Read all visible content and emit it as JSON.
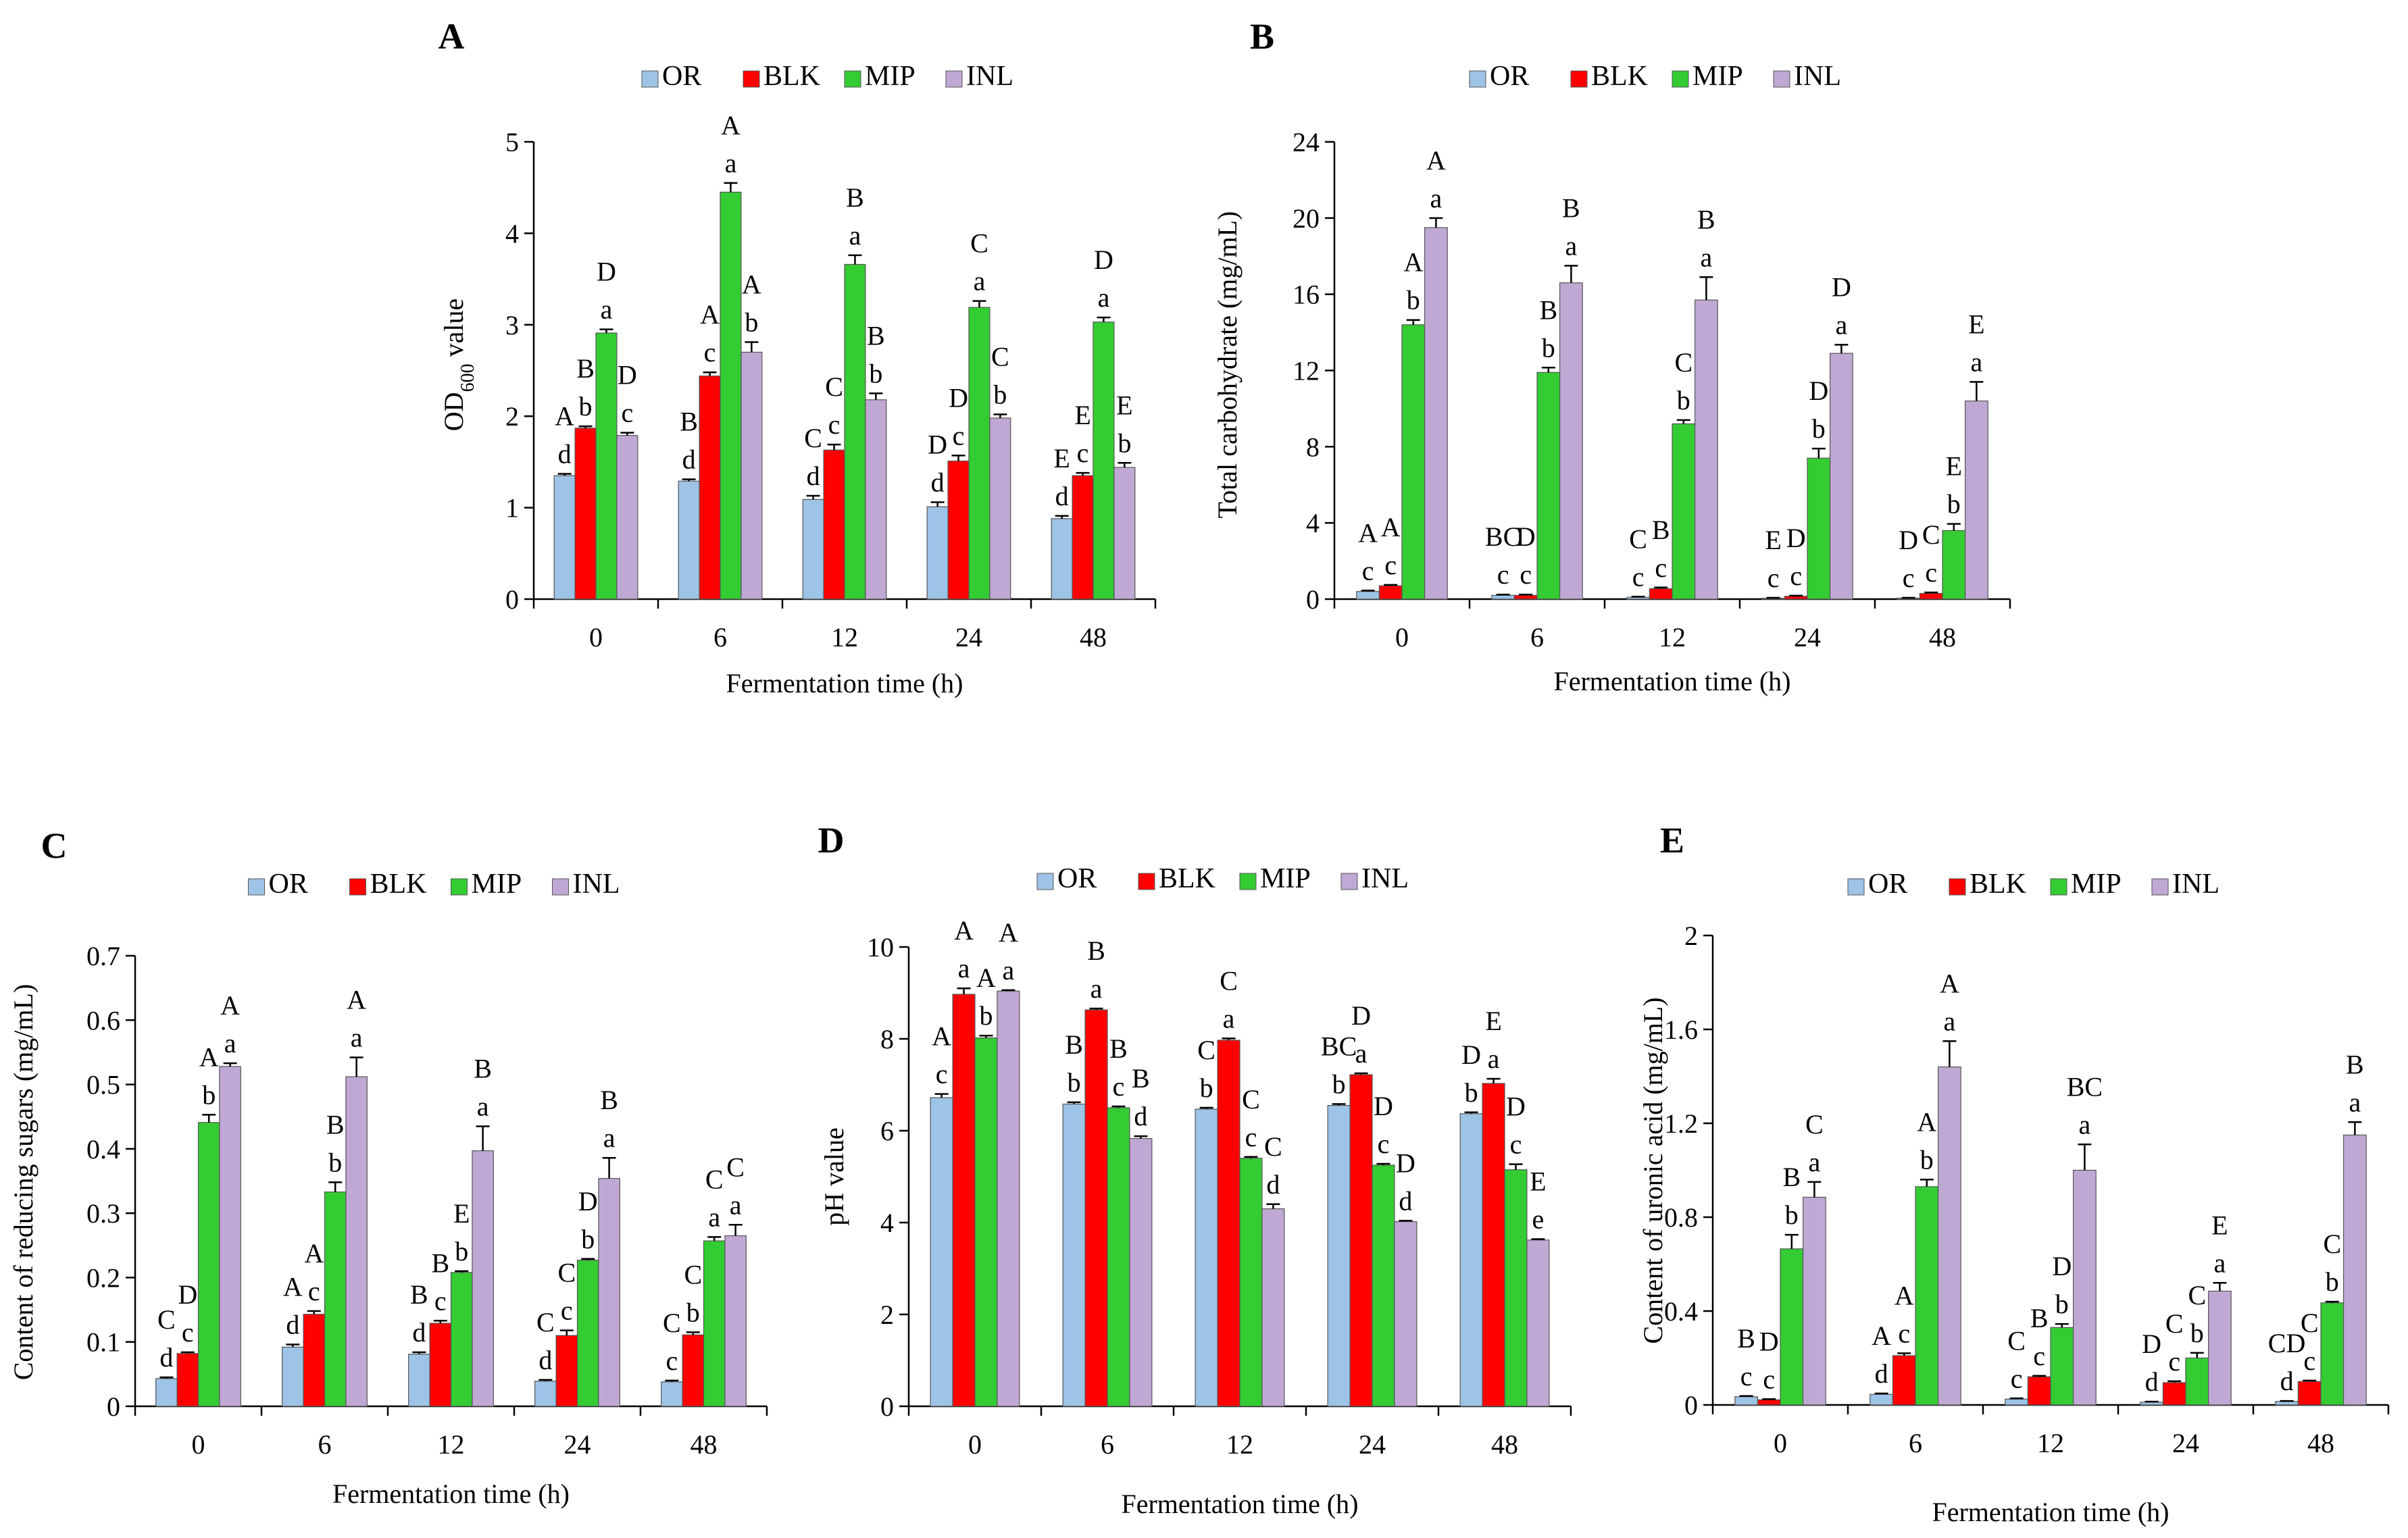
{
  "colors": {
    "OR": "#9DC3E6",
    "BLK": "#FF0000",
    "MIP": "#33CC33",
    "INL": "#C0A8D4",
    "edge": "#000000"
  },
  "chart_data": [
    {
      "type": "bar",
      "panel_letter": "A",
      "title": "",
      "legend": [
        "OR",
        "BLK",
        "MIP",
        "INL"
      ],
      "legend_position": "top",
      "xlabel": "Fermentation time (h)",
      "ylabel": "OD600 value",
      "ylabel_main": "OD",
      "ylabel_sub": "600",
      "ylabel_rest": " value",
      "ylim": [
        0,
        5
      ],
      "yticks": [
        "0",
        "1",
        "2",
        "3",
        "4",
        "5"
      ],
      "categories": [
        "0",
        "6",
        "12",
        "24",
        "48"
      ],
      "series": [
        {
          "name": "OR",
          "values": [
            1.35,
            1.29,
            1.09,
            1.01,
            0.88
          ],
          "errors": [
            0.02,
            0.02,
            0.04,
            0.05,
            0.03
          ],
          "labels": [
            "A\nd",
            "B\nd",
            "C\nd",
            "D\nd",
            "E\nd"
          ]
        },
        {
          "name": "BLK",
          "values": [
            1.87,
            2.44,
            1.63,
            1.51,
            1.35
          ],
          "errors": [
            0.02,
            0.04,
            0.06,
            0.06,
            0.03
          ],
          "labels": [
            "B\nb",
            "A\nc",
            "C\nc",
            "D\nc",
            "E\nc"
          ]
        },
        {
          "name": "MIP",
          "values": [
            2.91,
            4.45,
            3.66,
            3.19,
            3.03
          ],
          "errors": [
            0.04,
            0.1,
            0.1,
            0.07,
            0.05
          ],
          "labels": [
            "D\na",
            "A\na",
            "B\na",
            "C\na",
            "D\na"
          ]
        },
        {
          "name": "INL",
          "values": [
            1.79,
            2.7,
            2.18,
            1.98,
            1.44
          ],
          "errors": [
            0.03,
            0.11,
            0.07,
            0.04,
            0.05
          ],
          "labels": [
            "D\nc",
            "A\nb",
            "B\nb",
            "C\nb",
            "E\nb"
          ]
        }
      ]
    },
    {
      "type": "bar",
      "panel_letter": "B",
      "title": "",
      "legend": [
        "OR",
        "BLK",
        "MIP",
        "INL"
      ],
      "legend_position": "top",
      "xlabel": "Fermentation time (h)",
      "ylabel": "Total carbohydrate (mg/mL)",
      "ylim": [
        0,
        24
      ],
      "yticks": [
        "0",
        "4",
        "8",
        "12",
        "16",
        "20",
        "24"
      ],
      "categories": [
        "0",
        "6",
        "12",
        "24",
        "48"
      ],
      "series": [
        {
          "name": "OR",
          "values": [
            0.4,
            0.2,
            0.1,
            0.05,
            0.05
          ],
          "errors": [
            0.05,
            0.04,
            0.03,
            0.02,
            0.02
          ],
          "labels": [
            "A\nc",
            "BC\nc",
            "C\nc",
            "E\nc",
            "D\nc"
          ]
        },
        {
          "name": "BLK",
          "values": [
            0.7,
            0.2,
            0.55,
            0.15,
            0.3
          ],
          "errors": [
            0.05,
            0.04,
            0.06,
            0.03,
            0.05
          ],
          "labels": [
            "A\nc",
            "D\nc",
            "B\nc",
            "D\nc",
            "C\nc"
          ]
        },
        {
          "name": "MIP",
          "values": [
            14.4,
            11.9,
            9.2,
            7.4,
            3.6
          ],
          "errors": [
            0.25,
            0.25,
            0.2,
            0.5,
            0.35
          ],
          "labels": [
            "A\nb",
            "B\nb",
            "C\nb",
            "D\nb",
            "E\nb"
          ]
        },
        {
          "name": "INL",
          "values": [
            19.5,
            16.6,
            15.7,
            12.9,
            10.4
          ],
          "errors": [
            0.5,
            0.9,
            1.2,
            0.45,
            1.0
          ],
          "labels": [
            "A\na",
            "B\na",
            "B\na",
            "D\na",
            "E\na"
          ]
        }
      ]
    },
    {
      "type": "bar",
      "panel_letter": "C",
      "title": "",
      "legend": [
        "OR",
        "BLK",
        "MIP",
        "INL"
      ],
      "legend_position": "top",
      "xlabel": "Fermentation time (h)",
      "ylabel": "Content of reducing sugars (mg/mL)",
      "ylim": [
        0,
        0.7
      ],
      "yticks": [
        "0",
        "0.1",
        "0.2",
        "0.3",
        "0.4",
        "0.5",
        "0.6",
        "0.7"
      ],
      "categories": [
        "0",
        "6",
        "12",
        "24",
        "48"
      ],
      "series": [
        {
          "name": "OR",
          "values": [
            0.043,
            0.092,
            0.081,
            0.039,
            0.038
          ],
          "errors": [
            0.002,
            0.004,
            0.003,
            0.002,
            0.002
          ],
          "labels": [
            "C\nd",
            "A\nd",
            "B\nd",
            "C\nd",
            "C\nc"
          ]
        },
        {
          "name": "BLK",
          "values": [
            0.082,
            0.143,
            0.129,
            0.11,
            0.111
          ],
          "errors": [
            0.002,
            0.005,
            0.004,
            0.008,
            0.004
          ],
          "labels": [
            "D\nc",
            "A\nc",
            "B\nc",
            "C\nc",
            "C\nb"
          ]
        },
        {
          "name": "MIP",
          "values": [
            0.441,
            0.333,
            0.208,
            0.227,
            0.257
          ],
          "errors": [
            0.012,
            0.015,
            0.002,
            0.002,
            0.006
          ],
          "labels": [
            "A\nb",
            "B\nb",
            "E\nb",
            "D\nb",
            "C\na"
          ]
        },
        {
          "name": "INL",
          "values": [
            0.528,
            0.512,
            0.397,
            0.354,
            0.265
          ],
          "errors": [
            0.005,
            0.03,
            0.038,
            0.032,
            0.017
          ],
          "labels": [
            "A\na",
            "A\na",
            "B\na",
            "B\na",
            "C\na"
          ]
        }
      ]
    },
    {
      "type": "bar",
      "panel_letter": "D",
      "title": "",
      "legend": [
        "OR",
        "BLK",
        "MIP",
        "INL"
      ],
      "legend_position": "top",
      "xlabel": "Fermentation time (h)",
      "ylabel": "pH  value",
      "ylim": [
        0,
        10
      ],
      "yticks": [
        "0",
        "2",
        "4",
        "6",
        "8",
        "10"
      ],
      "categories": [
        "0",
        "6",
        "12",
        "24",
        "48"
      ],
      "series": [
        {
          "name": "OR",
          "values": [
            6.72,
            6.58,
            6.47,
            6.55,
            6.37
          ],
          "errors": [
            0.08,
            0.04,
            0.03,
            0.03,
            0.03
          ],
          "labels": [
            "A\nc",
            "B\nb",
            "C\nb",
            "BC\nb",
            "D\nb"
          ]
        },
        {
          "name": "BLK",
          "values": [
            8.97,
            8.63,
            7.97,
            7.22,
            7.03
          ],
          "errors": [
            0.13,
            0.03,
            0.04,
            0.03,
            0.1
          ],
          "labels": [
            "A\na",
            "B\na",
            "C\na",
            "D\na",
            "E\na"
          ]
        },
        {
          "name": "MIP",
          "values": [
            8.02,
            6.5,
            5.4,
            5.25,
            5.15
          ],
          "errors": [
            0.05,
            0.03,
            0.03,
            0.03,
            0.12
          ],
          "labels": [
            "A\nb",
            "B\nc",
            "C\nc",
            "D\nc",
            "D\nc"
          ]
        },
        {
          "name": "INL",
          "values": [
            9.04,
            5.83,
            4.3,
            4.02,
            3.62
          ],
          "errors": [
            0.02,
            0.05,
            0.1,
            0.02,
            0.02
          ],
          "labels": [
            "A\na",
            "B\nd",
            "C\nd",
            "D\nd",
            "E\ne"
          ]
        }
      ]
    },
    {
      "type": "bar",
      "panel_letter": "E",
      "title": "",
      "legend": [
        "OR",
        "BLK",
        "MIP",
        "INL"
      ],
      "legend_position": "top",
      "xlabel": "Fermentation time (h)",
      "ylabel": "Content of uronic acid (mg/mL)",
      "ylim": [
        0,
        2
      ],
      "yticks": [
        "0",
        "0.4",
        "0.8",
        "1.2",
        "1.6",
        "2"
      ],
      "categories": [
        "0",
        "6",
        "12",
        "24",
        "48"
      ],
      "series": [
        {
          "name": "OR",
          "values": [
            0.035,
            0.045,
            0.025,
            0.012,
            0.015
          ],
          "errors": [
            0.003,
            0.004,
            0.003,
            0.002,
            0.002
          ],
          "labels": [
            "B\nc",
            "A\nd",
            "C\nc",
            "D\nd",
            "CD\nd"
          ]
        },
        {
          "name": "BLK",
          "values": [
            0.022,
            0.21,
            0.12,
            0.095,
            0.1
          ],
          "errors": [
            0.003,
            0.01,
            0.004,
            0.006,
            0.004
          ],
          "labels": [
            "D\nc",
            "A\nc",
            "B\nc",
            "C\nc",
            "C\nc"
          ]
        },
        {
          "name": "MIP",
          "values": [
            0.665,
            0.93,
            0.33,
            0.2,
            0.435
          ],
          "errors": [
            0.06,
            0.03,
            0.015,
            0.022,
            0.005
          ],
          "labels": [
            "B\nb",
            "A\nb",
            "D\nb",
            "C\nb",
            "C\nb"
          ]
        },
        {
          "name": "INL",
          "values": [
            0.885,
            1.44,
            1.0,
            0.485,
            1.15
          ],
          "errors": [
            0.065,
            0.11,
            0.11,
            0.035,
            0.055
          ],
          "labels": [
            "C\na",
            "A\na",
            "BC\na",
            "E\na",
            "B\na"
          ]
        }
      ]
    }
  ]
}
